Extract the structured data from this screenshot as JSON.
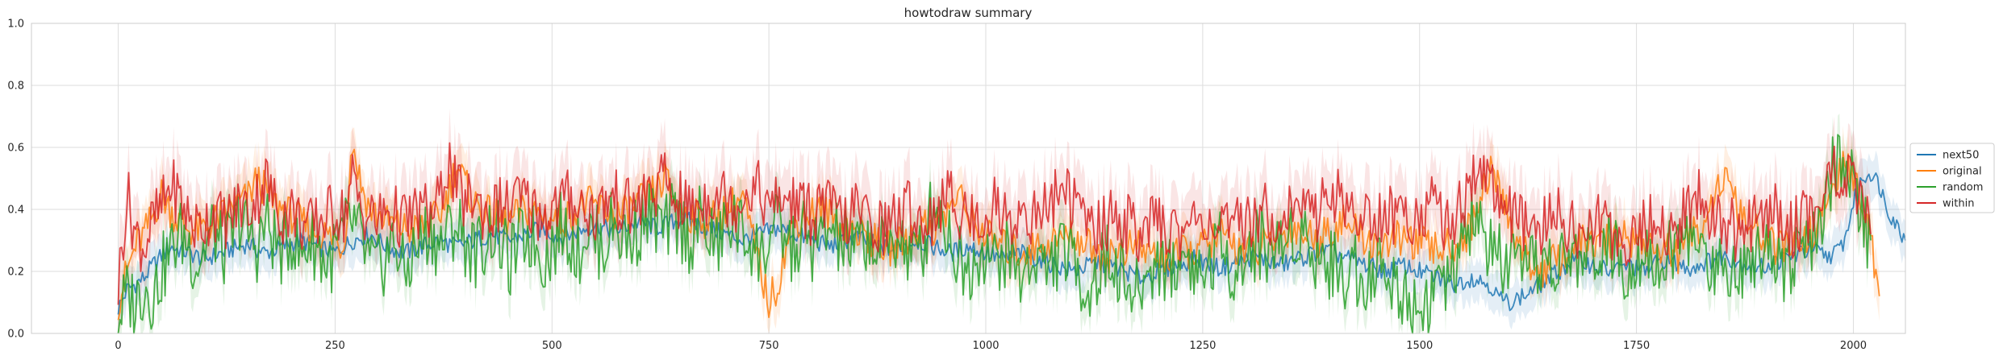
{
  "chart_data": {
    "type": "line",
    "title": "howtodraw summary",
    "xlabel": "",
    "ylabel": "",
    "xlim": [
      -100,
      2060
    ],
    "ylim": [
      0.0,
      1.0
    ],
    "x_ticks": [
      0,
      250,
      500,
      750,
      1000,
      1250,
      1500,
      1750,
      2000
    ],
    "x_tick_labels": [
      "0",
      "250",
      "500",
      "750",
      "1000",
      "1250",
      "1500",
      "1750",
      "2000"
    ],
    "y_ticks": [
      0.0,
      0.2,
      0.4,
      0.6,
      0.8,
      1.0
    ],
    "y_tick_labels": [
      "0.0",
      "0.2",
      "0.4",
      "0.6",
      "0.8",
      "1.0"
    ],
    "grid": true,
    "legend_position": "right, outside plot area",
    "style": "seaborn whitegrid, lines with shaded confidence bands",
    "x_step": 10,
    "series": [
      {
        "name": "next50",
        "color": "#1f77b4",
        "x_start": 0,
        "values": [
          0.08,
          0.14,
          0.16,
          0.18,
          0.22,
          0.25,
          0.28,
          0.27,
          0.26,
          0.25,
          0.24,
          0.25,
          0.26,
          0.27,
          0.28,
          0.29,
          0.27,
          0.26,
          0.27,
          0.28,
          0.29,
          0.3,
          0.29,
          0.28,
          0.27,
          0.26,
          0.28,
          0.3,
          0.31,
          0.32,
          0.3,
          0.28,
          0.27,
          0.26,
          0.27,
          0.28,
          0.29,
          0.3,
          0.29,
          0.28,
          0.29,
          0.3,
          0.31,
          0.32,
          0.31,
          0.3,
          0.31,
          0.32,
          0.33,
          0.34,
          0.32,
          0.31,
          0.32,
          0.33,
          0.34,
          0.35,
          0.34,
          0.33,
          0.34,
          0.35,
          0.36,
          0.35,
          0.34,
          0.35,
          0.36,
          0.37,
          0.36,
          0.35,
          0.34,
          0.33,
          0.32,
          0.31,
          0.3,
          0.31,
          0.32,
          0.33,
          0.34,
          0.33,
          0.32,
          0.31,
          0.3,
          0.29,
          0.28,
          0.29,
          0.3,
          0.31,
          0.3,
          0.29,
          0.28,
          0.27,
          0.28,
          0.29,
          0.3,
          0.29,
          0.28,
          0.27,
          0.26,
          0.27,
          0.28,
          0.27,
          0.26,
          0.25,
          0.24,
          0.25,
          0.26,
          0.25,
          0.24,
          0.23,
          0.22,
          0.21,
          0.2,
          0.21,
          0.22,
          0.23,
          0.22,
          0.21,
          0.2,
          0.19,
          0.18,
          0.19,
          0.2,
          0.21,
          0.22,
          0.23,
          0.24,
          0.23,
          0.22,
          0.21,
          0.22,
          0.23,
          0.24,
          0.25,
          0.24,
          0.23,
          0.22,
          0.23,
          0.24,
          0.25,
          0.26,
          0.27,
          0.26,
          0.25,
          0.24,
          0.23,
          0.22,
          0.21,
          0.2,
          0.21,
          0.22,
          0.21,
          0.2,
          0.19,
          0.18,
          0.17,
          0.16,
          0.17,
          0.18,
          0.17,
          0.16,
          0.12,
          0.1,
          0.11,
          0.12,
          0.14,
          0.16,
          0.18,
          0.2,
          0.22,
          0.24,
          0.23,
          0.22,
          0.21,
          0.2,
          0.21,
          0.22,
          0.21,
          0.2,
          0.22,
          0.24,
          0.23,
          0.22,
          0.21,
          0.22,
          0.23,
          0.24,
          0.25,
          0.24,
          0.23,
          0.22,
          0.21,
          0.22,
          0.23,
          0.24,
          0.25,
          0.26,
          0.27,
          0.26,
          0.25,
          0.26,
          0.3,
          0.42,
          0.5,
          0.52,
          0.48,
          0.4,
          0.35,
          0.3
        ]
      },
      {
        "name": "original",
        "color": "#ff7f0e",
        "x_start": 0,
        "values": [
          0.1,
          0.2,
          0.28,
          0.32,
          0.38,
          0.45,
          0.4,
          0.36,
          0.34,
          0.33,
          0.34,
          0.36,
          0.38,
          0.4,
          0.42,
          0.44,
          0.5,
          0.46,
          0.42,
          0.4,
          0.38,
          0.36,
          0.34,
          0.33,
          0.32,
          0.3,
          0.28,
          0.62,
          0.48,
          0.4,
          0.38,
          0.36,
          0.35,
          0.34,
          0.33,
          0.34,
          0.36,
          0.38,
          0.45,
          0.55,
          0.48,
          0.42,
          0.4,
          0.38,
          0.37,
          0.36,
          0.38,
          0.4,
          0.39,
          0.38,
          0.37,
          0.36,
          0.38,
          0.4,
          0.42,
          0.41,
          0.4,
          0.39,
          0.38,
          0.4,
          0.42,
          0.44,
          0.46,
          0.5,
          0.44,
          0.4,
          0.38,
          0.37,
          0.36,
          0.38,
          0.4,
          0.42,
          0.44,
          0.32,
          0.2,
          0.1,
          0.16,
          0.28,
          0.36,
          0.38,
          0.39,
          0.4,
          0.38,
          0.36,
          0.34,
          0.33,
          0.32,
          0.3,
          0.28,
          0.27,
          0.29,
          0.31,
          0.33,
          0.35,
          0.34,
          0.36,
          0.42,
          0.44,
          0.38,
          0.34,
          0.32,
          0.3,
          0.28,
          0.27,
          0.26,
          0.27,
          0.28,
          0.29,
          0.3,
          0.31,
          0.32,
          0.3,
          0.28,
          0.26,
          0.25,
          0.26,
          0.27,
          0.28,
          0.27,
          0.26,
          0.25,
          0.24,
          0.25,
          0.26,
          0.27,
          0.28,
          0.3,
          0.32,
          0.3,
          0.28,
          0.27,
          0.26,
          0.28,
          0.3,
          0.32,
          0.34,
          0.33,
          0.32,
          0.3,
          0.32,
          0.34,
          0.36,
          0.34,
          0.32,
          0.3,
          0.28,
          0.29,
          0.3,
          0.31,
          0.3,
          0.29,
          0.28,
          0.27,
          0.28,
          0.29,
          0.3,
          0.35,
          0.45,
          0.52,
          0.48,
          0.4,
          0.32,
          0.26,
          0.22,
          0.2,
          0.22,
          0.24,
          0.26,
          0.28,
          0.3,
          0.29,
          0.28,
          0.3,
          0.32,
          0.31,
          0.3,
          0.29,
          0.28,
          0.27,
          0.26,
          0.25,
          0.3,
          0.34,
          0.38,
          0.45,
          0.5,
          0.44,
          0.38,
          0.34,
          0.32,
          0.3,
          0.28,
          0.27,
          0.28,
          0.3,
          0.32,
          0.35,
          0.42,
          0.5,
          0.54,
          0.5,
          0.44,
          0.3,
          0.12
        ]
      },
      {
        "name": "random",
        "color": "#2ca02c",
        "x_start": 0,
        "values": [
          0.05,
          0.12,
          0.1,
          0.16,
          0.12,
          0.2,
          0.26,
          0.32,
          0.3,
          0.22,
          0.28,
          0.34,
          0.26,
          0.3,
          0.38,
          0.32,
          0.28,
          0.36,
          0.3,
          0.26,
          0.32,
          0.24,
          0.3,
          0.28,
          0.22,
          0.26,
          0.32,
          0.36,
          0.3,
          0.22,
          0.2,
          0.26,
          0.3,
          0.18,
          0.26,
          0.3,
          0.34,
          0.28,
          0.32,
          0.36,
          0.3,
          0.26,
          0.28,
          0.34,
          0.3,
          0.22,
          0.28,
          0.32,
          0.3,
          0.24,
          0.28,
          0.34,
          0.32,
          0.26,
          0.34,
          0.3,
          0.28,
          0.36,
          0.32,
          0.3,
          0.34,
          0.38,
          0.36,
          0.32,
          0.38,
          0.34,
          0.3,
          0.36,
          0.32,
          0.28,
          0.34,
          0.36,
          0.32,
          0.3,
          0.24,
          0.3,
          0.34,
          0.3,
          0.26,
          0.32,
          0.28,
          0.3,
          0.34,
          0.3,
          0.28,
          0.26,
          0.32,
          0.28,
          0.26,
          0.3,
          0.32,
          0.26,
          0.24,
          0.3,
          0.44,
          0.38,
          0.3,
          0.24,
          0.2,
          0.26,
          0.28,
          0.22,
          0.26,
          0.24,
          0.18,
          0.22,
          0.26,
          0.2,
          0.24,
          0.28,
          0.22,
          0.18,
          0.14,
          0.2,
          0.24,
          0.22,
          0.18,
          0.1,
          0.16,
          0.2,
          0.24,
          0.2,
          0.22,
          0.26,
          0.22,
          0.18,
          0.24,
          0.28,
          0.24,
          0.2,
          0.24,
          0.28,
          0.3,
          0.26,
          0.28,
          0.32,
          0.34,
          0.3,
          0.26,
          0.24,
          0.22,
          0.18,
          0.22,
          0.2,
          0.18,
          0.22,
          0.2,
          0.16,
          0.14,
          0.1,
          0.08,
          0.12,
          0.16,
          0.14,
          0.2,
          0.28,
          0.36,
          0.34,
          0.28,
          0.24,
          0.22,
          0.2,
          0.18,
          0.2,
          0.24,
          0.22,
          0.2,
          0.24,
          0.26,
          0.22,
          0.26,
          0.3,
          0.26,
          0.24,
          0.22,
          0.26,
          0.28,
          0.24,
          0.22,
          0.26,
          0.3,
          0.32,
          0.28,
          0.24,
          0.2,
          0.24,
          0.22,
          0.2,
          0.24,
          0.28,
          0.3,
          0.26,
          0.22,
          0.24,
          0.28,
          0.26,
          0.3,
          0.46,
          0.56,
          0.54,
          0.48,
          0.36,
          0.3
        ]
      },
      {
        "name": "within",
        "color": "#d62728",
        "x_start": 0,
        "values": [
          0.15,
          0.45,
          0.32,
          0.28,
          0.36,
          0.4,
          0.48,
          0.44,
          0.38,
          0.34,
          0.36,
          0.4,
          0.36,
          0.38,
          0.42,
          0.4,
          0.44,
          0.5,
          0.42,
          0.38,
          0.4,
          0.36,
          0.34,
          0.36,
          0.38,
          0.4,
          0.38,
          0.5,
          0.4,
          0.38,
          0.36,
          0.4,
          0.38,
          0.36,
          0.38,
          0.4,
          0.38,
          0.42,
          0.56,
          0.46,
          0.42,
          0.44,
          0.4,
          0.38,
          0.42,
          0.4,
          0.44,
          0.42,
          0.4,
          0.38,
          0.4,
          0.42,
          0.44,
          0.42,
          0.4,
          0.38,
          0.42,
          0.44,
          0.42,
          0.4,
          0.42,
          0.44,
          0.46,
          0.5,
          0.44,
          0.42,
          0.4,
          0.42,
          0.44,
          0.46,
          0.44,
          0.42,
          0.44,
          0.48,
          0.46,
          0.4,
          0.42,
          0.44,
          0.42,
          0.4,
          0.38,
          0.42,
          0.4,
          0.38,
          0.36,
          0.4,
          0.38,
          0.36,
          0.34,
          0.36,
          0.38,
          0.4,
          0.38,
          0.36,
          0.38,
          0.42,
          0.44,
          0.4,
          0.38,
          0.36,
          0.38,
          0.42,
          0.38,
          0.36,
          0.4,
          0.38,
          0.36,
          0.42,
          0.44,
          0.48,
          0.42,
          0.38,
          0.36,
          0.34,
          0.36,
          0.38,
          0.36,
          0.34,
          0.32,
          0.34,
          0.36,
          0.34,
          0.32,
          0.34,
          0.36,
          0.38,
          0.36,
          0.34,
          0.32,
          0.34,
          0.36,
          0.38,
          0.4,
          0.38,
          0.36,
          0.4,
          0.42,
          0.4,
          0.38,
          0.44,
          0.46,
          0.42,
          0.4,
          0.38,
          0.36,
          0.38,
          0.4,
          0.38,
          0.36,
          0.38,
          0.4,
          0.42,
          0.4,
          0.36,
          0.38,
          0.42,
          0.5,
          0.54,
          0.5,
          0.44,
          0.4,
          0.36,
          0.34,
          0.32,
          0.34,
          0.36,
          0.38,
          0.36,
          0.34,
          0.32,
          0.34,
          0.36,
          0.34,
          0.32,
          0.3,
          0.32,
          0.34,
          0.36,
          0.34,
          0.32,
          0.36,
          0.4,
          0.44,
          0.42,
          0.38,
          0.36,
          0.34,
          0.32,
          0.34,
          0.36,
          0.38,
          0.4,
          0.36,
          0.34,
          0.36,
          0.4,
          0.42,
          0.48,
          0.54,
          0.52,
          0.46,
          0.38,
          0.32
        ]
      }
    ]
  }
}
